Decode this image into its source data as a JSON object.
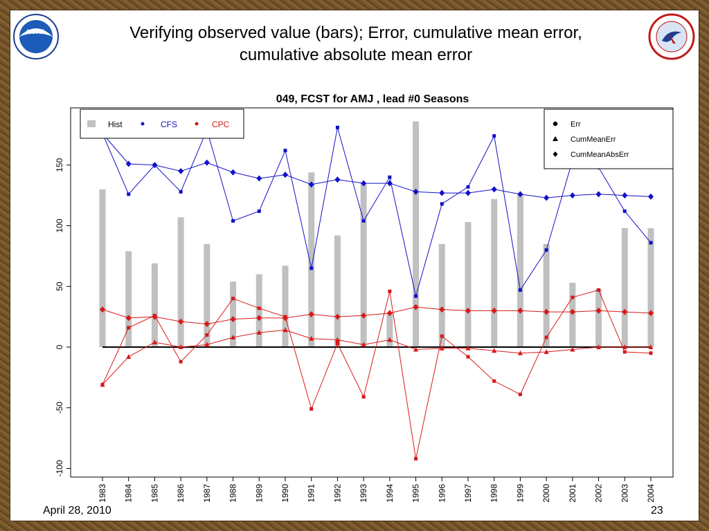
{
  "slide": {
    "title_line1": "Verifying observed value (bars); Error, cumulative mean error,",
    "title_line2": "cumulative absolute mean error",
    "date": "April 28, 2010",
    "page_number": "23"
  },
  "logos": {
    "left": "noaa-logo",
    "right": "national-weather-service-logo"
  },
  "colors": {
    "hist": "#c0c0c0",
    "cfs": "#1010c8",
    "cpc": "#d81818",
    "zero_line": "#000000"
  },
  "chart_data": {
    "type": "bar",
    "title": "049, FCST for AMJ , lead #0 Seasons",
    "categories": [
      "1983",
      "1984",
      "1985",
      "1986",
      "1987",
      "1988",
      "1989",
      "1990",
      "1991",
      "1992",
      "1993",
      "1994",
      "1995",
      "1996",
      "1997",
      "1998",
      "1999",
      "2000",
      "2001",
      "2002",
      "2003",
      "2004"
    ],
    "ylim": [
      -100,
      185
    ],
    "yticks": [
      -100,
      -50,
      0,
      50,
      100,
      150
    ],
    "legend_series": {
      "placement": "top-left",
      "items": [
        {
          "key": "hist",
          "label": "Hist"
        },
        {
          "key": "cfs",
          "label": "CFS"
        },
        {
          "key": "cpc",
          "label": "CPC"
        }
      ]
    },
    "legend_markers": {
      "placement": "top-right",
      "items": [
        {
          "marker": "circle",
          "label": "Err"
        },
        {
          "marker": "triangle",
          "label": "CumMeanErr"
        },
        {
          "marker": "diamond",
          "label": "CumMeanAbsErr"
        }
      ]
    },
    "hist": [
      130,
      79,
      69,
      107,
      85,
      54,
      60,
      67,
      144,
      92,
      135,
      28,
      186,
      85,
      103,
      122,
      126,
      85,
      53,
      48,
      98,
      98
    ],
    "series": [
      {
        "name": "CFS",
        "key": "cfs",
        "metric": "Err",
        "values": [
          176,
          126,
          150,
          128,
          179,
          104,
          112,
          162,
          65,
          181,
          104,
          140,
          42,
          118,
          132,
          174,
          47,
          80,
          154,
          148,
          112,
          86
        ]
      },
      {
        "name": "CFS",
        "key": "cfs",
        "metric": "CumMeanAbsErr",
        "values": [
          176,
          151,
          150,
          145,
          152,
          144,
          139,
          142,
          134,
          138,
          135,
          135,
          128,
          127,
          127,
          130,
          126,
          123,
          125,
          126,
          125,
          124
        ]
      },
      {
        "name": "CPC",
        "key": "cpc",
        "metric": "Err",
        "values": [
          -31,
          16,
          26,
          -12,
          10,
          40,
          32,
          25,
          -51,
          3,
          -41,
          46,
          -92,
          9,
          -8,
          -28,
          -39,
          8,
          41,
          47,
          -4,
          -5
        ]
      },
      {
        "name": "CPC",
        "key": "cpc",
        "metric": "CumMeanErr",
        "values": [
          -31,
          -8,
          4,
          0,
          2,
          8,
          12,
          14,
          7,
          6,
          2,
          6,
          -2,
          -1,
          -1,
          -3,
          -5,
          -4,
          -2,
          0,
          0,
          0
        ]
      },
      {
        "name": "CPC",
        "key": "cpc",
        "metric": "CumMeanAbsErr",
        "values": [
          31,
          24,
          25,
          21,
          19,
          23,
          24,
          24,
          27,
          25,
          26,
          28,
          33,
          31,
          30,
          30,
          30,
          29,
          29,
          30,
          29,
          28
        ]
      }
    ]
  }
}
